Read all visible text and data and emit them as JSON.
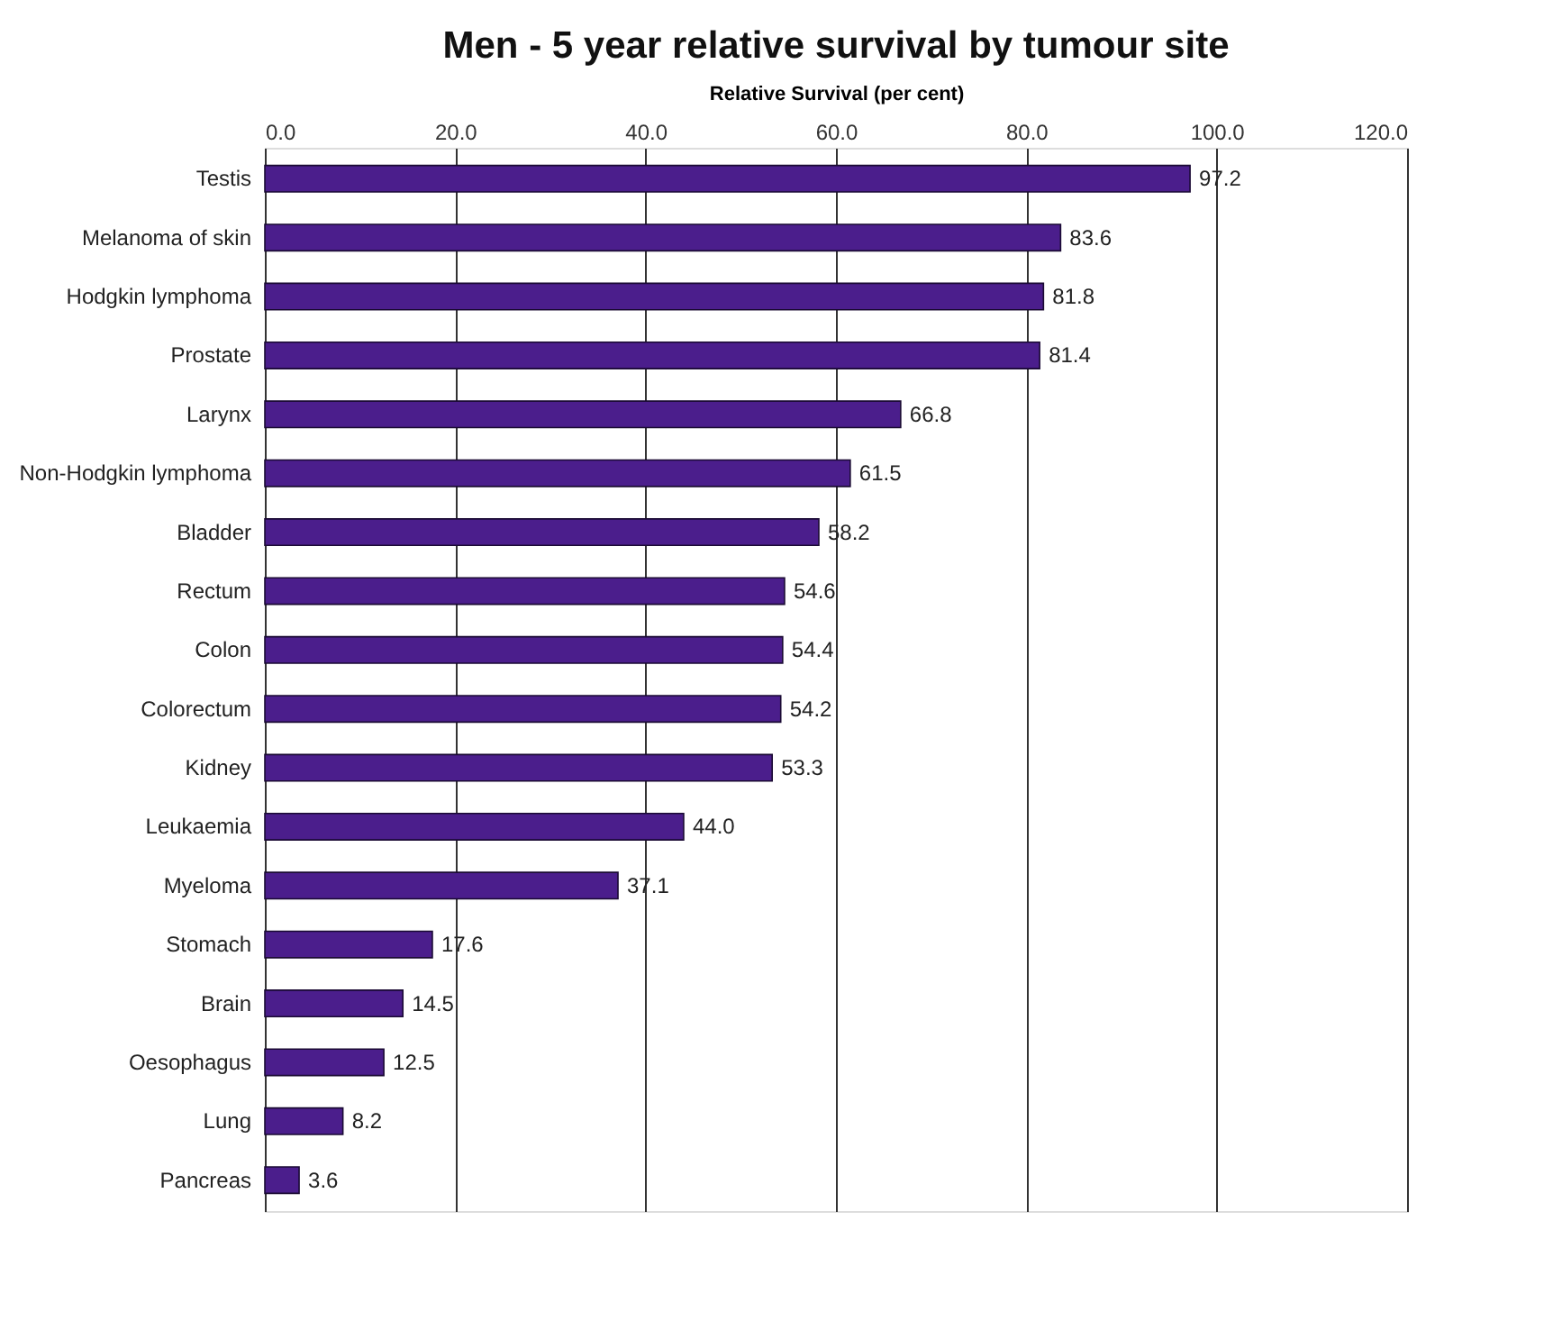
{
  "chart_data": {
    "type": "bar",
    "orientation": "horizontal",
    "title": "Men - 5 year relative survival by tumour site",
    "xlabel": "Relative Survival (per cent)",
    "categories": [
      "Testis",
      "Melanoma of skin",
      "Hodgkin lymphoma",
      "Prostate",
      "Larynx",
      "Non-Hodgkin lymphoma",
      "Bladder",
      "Rectum",
      "Colon",
      "Colorectum",
      "Kidney",
      "Leukaemia",
      "Myeloma",
      "Stomach",
      "Brain",
      "Oesophagus",
      "Lung",
      "Pancreas"
    ],
    "values": [
      97.2,
      83.6,
      81.8,
      81.4,
      66.8,
      61.5,
      58.2,
      54.6,
      54.4,
      54.2,
      53.3,
      44.0,
      37.1,
      17.6,
      14.5,
      12.5,
      8.2,
      3.6
    ],
    "value_labels": [
      "97.2",
      "83.6",
      "81.8",
      "81.4",
      "66.8",
      "61.5",
      "58.2",
      "54.6",
      "54.4",
      "54.2",
      "53.3",
      "44.0",
      "37.1",
      "17.6",
      "14.5",
      "12.5",
      "8.2",
      "3.6"
    ],
    "color": "#4b1e8c",
    "xlim": [
      0,
      120
    ],
    "xticks": [
      {
        "value": 0,
        "label": "0.0"
      },
      {
        "value": 20,
        "label": "20.0"
      },
      {
        "value": 40,
        "label": "40.0"
      },
      {
        "value": 60,
        "label": "60.0"
      },
      {
        "value": 80,
        "label": "80.0"
      },
      {
        "value": 100,
        "label": "100.0"
      },
      {
        "value": 120,
        "label": "120.0"
      }
    ],
    "grid": "x"
  }
}
